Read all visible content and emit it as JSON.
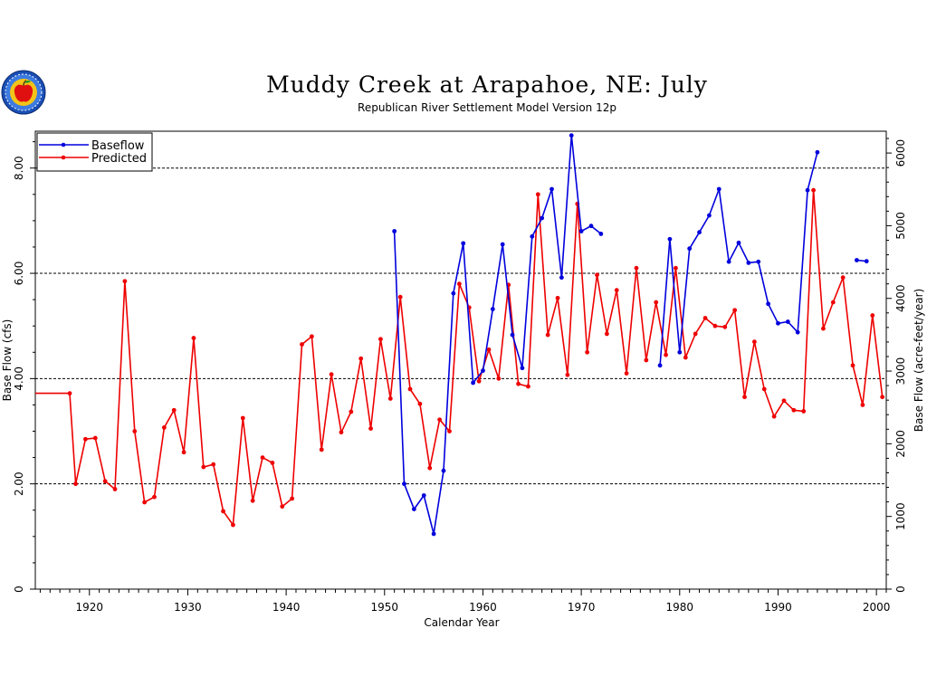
{
  "chart_data": {
    "type": "line",
    "title": "Muddy Creek at Arapahoe, NE: July",
    "subtitle": "Republican River Settlement Model Version 12p",
    "xlabel": "Calendar Year",
    "ylabel_left": "Base Flow (cfs)",
    "ylabel_right": "Base Flow (acre-feet/year)",
    "xlim": [
      1914.5,
      2001
    ],
    "ylim": [
      0,
      8.7
    ],
    "ylim_right_acre_feet": [
      0,
      6300
    ],
    "x_ticks": [
      1920,
      1930,
      1940,
      1950,
      1960,
      1970,
      1980,
      1990,
      2000
    ],
    "x_tick_labels": [
      "1920",
      "1930",
      "1940",
      "1950",
      "1960",
      "1970",
      "1980",
      "1990",
      "2000"
    ],
    "y_ticks": [
      0,
      2,
      4,
      6,
      8
    ],
    "y_tick_labels": [
      "0",
      "2.00",
      "4.00",
      "6.00",
      "8.00"
    ],
    "y2_ticks": [
      0,
      1000,
      2000,
      3000,
      4000,
      5000,
      6000
    ],
    "y2_tick_labels": [
      "0",
      "1000",
      "2000",
      "3000",
      "4000",
      "5000",
      "6000"
    ],
    "gridlines_y": [
      2,
      4,
      6,
      8
    ],
    "legend_position": "top-left",
    "series": [
      {
        "name": "Baseflow",
        "color": "#0000dd",
        "points": [
          [
            1951,
            6.8
          ],
          [
            1952,
            2.0
          ],
          [
            1953,
            1.52
          ],
          [
            1954,
            1.78
          ],
          [
            1955,
            1.05
          ],
          [
            1956,
            2.25
          ],
          [
            1957,
            5.62
          ],
          [
            1958,
            6.57
          ],
          [
            1959,
            3.92
          ],
          [
            1960,
            4.15
          ],
          [
            1961,
            5.32
          ],
          [
            1962,
            6.55
          ],
          [
            1963,
            4.83
          ],
          [
            1964,
            4.2
          ],
          [
            1965,
            6.7
          ],
          [
            1966,
            7.05
          ],
          [
            1967,
            7.6
          ],
          [
            1968,
            5.92
          ],
          [
            1969,
            8.62
          ],
          [
            1970,
            6.8
          ],
          [
            1971,
            6.9
          ],
          [
            1972,
            6.75
          ],
          null,
          [
            1978,
            4.25
          ],
          [
            1979,
            6.65
          ],
          [
            1980,
            4.5
          ],
          [
            1981,
            6.47
          ],
          [
            1982,
            6.78
          ],
          [
            1983,
            7.1
          ],
          [
            1984,
            7.6
          ],
          [
            1985,
            6.22
          ],
          [
            1986,
            6.58
          ],
          [
            1987,
            6.2
          ],
          [
            1988,
            6.22
          ],
          [
            1989,
            5.42
          ],
          [
            1990,
            5.05
          ],
          [
            1991,
            5.08
          ],
          [
            1992,
            4.88
          ],
          [
            1993,
            7.58
          ],
          [
            1994,
            8.3
          ],
          null,
          [
            1998,
            6.25
          ],
          [
            1999,
            6.23
          ]
        ]
      },
      {
        "name": "Predicted",
        "color": "#ee0000",
        "points": [
          [
            1914.5,
            3.72
          ],
          [
            1918,
            3.72
          ],
          [
            1918.6,
            2.0
          ],
          [
            1919.6,
            2.85
          ],
          [
            1920.6,
            2.87
          ],
          [
            1921.6,
            2.05
          ],
          [
            1922.6,
            1.9
          ],
          [
            1923.6,
            5.85
          ],
          [
            1924.6,
            3.0
          ],
          [
            1925.6,
            1.65
          ],
          [
            1926.6,
            1.75
          ],
          [
            1927.6,
            3.07
          ],
          [
            1928.6,
            3.4
          ],
          [
            1929.6,
            2.6
          ],
          [
            1930.6,
            4.77
          ],
          [
            1931.6,
            2.32
          ],
          [
            1932.6,
            2.37
          ],
          [
            1933.6,
            1.48
          ],
          [
            1934.6,
            1.22
          ],
          [
            1935.6,
            3.25
          ],
          [
            1936.6,
            1.68
          ],
          [
            1937.6,
            2.5
          ],
          [
            1938.6,
            2.4
          ],
          [
            1939.6,
            1.57
          ],
          [
            1940.6,
            1.72
          ],
          [
            1941.6,
            4.65
          ],
          [
            1942.6,
            4.8
          ],
          [
            1943.6,
            2.65
          ],
          [
            1944.6,
            4.08
          ],
          [
            1945.6,
            2.98
          ],
          [
            1946.6,
            3.37
          ],
          [
            1947.6,
            4.38
          ],
          [
            1948.6,
            3.05
          ],
          [
            1949.6,
            4.75
          ],
          [
            1950.6,
            3.62
          ],
          [
            1951.6,
            5.55
          ],
          [
            1952.6,
            3.8
          ],
          [
            1953.6,
            3.52
          ],
          [
            1954.6,
            2.3
          ],
          [
            1955.6,
            3.22
          ],
          [
            1956.6,
            3.0
          ],
          [
            1957.6,
            5.8
          ],
          [
            1958.6,
            5.35
          ],
          [
            1959.6,
            3.95
          ],
          [
            1960.6,
            4.55
          ],
          [
            1961.6,
            4.0
          ],
          [
            1962.6,
            5.78
          ],
          [
            1963.6,
            3.9
          ],
          [
            1964.6,
            3.85
          ],
          [
            1965.6,
            7.5
          ],
          [
            1966.6,
            4.83
          ],
          [
            1967.6,
            5.53
          ],
          [
            1968.6,
            4.07
          ],
          [
            1969.6,
            7.32
          ],
          [
            1970.6,
            4.5
          ],
          [
            1971.6,
            5.97
          ],
          [
            1972.6,
            4.85
          ],
          [
            1973.6,
            5.68
          ],
          [
            1974.6,
            4.1
          ],
          [
            1975.6,
            6.1
          ],
          [
            1976.6,
            4.35
          ],
          [
            1977.6,
            5.45
          ],
          [
            1978.6,
            4.45
          ],
          [
            1979.6,
            6.1
          ],
          [
            1980.6,
            4.4
          ],
          [
            1981.6,
            4.85
          ],
          [
            1982.6,
            5.15
          ],
          [
            1983.6,
            5.0
          ],
          [
            1984.6,
            4.98
          ],
          [
            1985.6,
            5.3
          ],
          [
            1986.6,
            3.65
          ],
          [
            1987.6,
            4.7
          ],
          [
            1988.6,
            3.8
          ],
          [
            1989.6,
            3.28
          ],
          [
            1990.6,
            3.58
          ],
          [
            1991.6,
            3.4
          ],
          [
            1992.6,
            3.38
          ],
          [
            1993.6,
            7.58
          ],
          [
            1994.6,
            4.95
          ],
          [
            1995.6,
            5.45
          ],
          [
            1996.6,
            5.92
          ],
          [
            1997.6,
            4.25
          ],
          [
            1998.6,
            3.5
          ],
          [
            1999.6,
            5.2
          ],
          [
            2000.6,
            3.65
          ]
        ]
      }
    ]
  },
  "logo": {
    "icon": "apple-seal-icon"
  }
}
